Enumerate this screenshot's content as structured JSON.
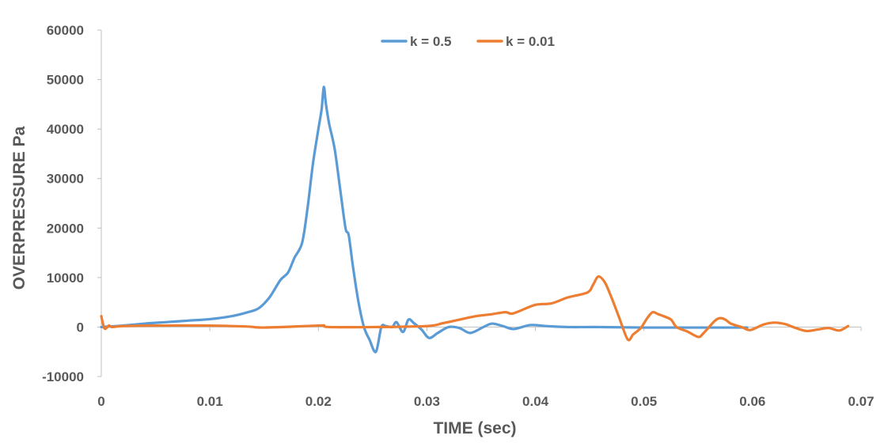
{
  "chart_data": {
    "type": "line",
    "title": "",
    "xlabel": "TIME (sec)",
    "ylabel": "OVERPRESSURE Pa",
    "xlim": [
      0,
      0.07
    ],
    "ylim": [
      -10000,
      60000
    ],
    "x_ticks": [
      "0",
      "0.01",
      "0.02",
      "0.03",
      "0.04",
      "0.05",
      "0.06",
      "0.07"
    ],
    "y_ticks": [
      "-10000",
      "0",
      "10000",
      "20000",
      "30000",
      "40000",
      "50000",
      "60000"
    ],
    "grid": false,
    "legend_position": "top-center",
    "colors": {
      "axis": "#bfbfbf",
      "text": "#595959"
    },
    "series": [
      {
        "name": "k = 0.5",
        "color": "#5b9bd5",
        "points": [
          [
            0,
            0
          ],
          [
            0.002,
            300
          ],
          [
            0.004,
            700
          ],
          [
            0.006,
            1000
          ],
          [
            0.008,
            1300
          ],
          [
            0.01,
            1600
          ],
          [
            0.012,
            2200
          ],
          [
            0.0135,
            3000
          ],
          [
            0.0145,
            3800
          ],
          [
            0.0155,
            6000
          ],
          [
            0.0165,
            9500
          ],
          [
            0.0172,
            11000
          ],
          [
            0.0178,
            14000
          ],
          [
            0.0185,
            17000
          ],
          [
            0.019,
            24000
          ],
          [
            0.0195,
            33000
          ],
          [
            0.02,
            40000
          ],
          [
            0.0203,
            44000
          ],
          [
            0.0205,
            48500
          ],
          [
            0.0207,
            45000
          ],
          [
            0.021,
            41000
          ],
          [
            0.0215,
            36000
          ],
          [
            0.022,
            28000
          ],
          [
            0.0225,
            20000
          ],
          [
            0.0228,
            18500
          ],
          [
            0.0232,
            12000
          ],
          [
            0.0237,
            5000
          ],
          [
            0.0242,
            0
          ],
          [
            0.0247,
            -2500
          ],
          [
            0.0253,
            -5000
          ],
          [
            0.0258,
            0
          ],
          [
            0.0262,
            200
          ],
          [
            0.0268,
            0
          ],
          [
            0.0272,
            1000
          ],
          [
            0.0278,
            -1000
          ],
          [
            0.0283,
            1500
          ],
          [
            0.0288,
            800
          ],
          [
            0.0295,
            -500
          ],
          [
            0.0302,
            -2200
          ],
          [
            0.031,
            -1200
          ],
          [
            0.032,
            0
          ],
          [
            0.033,
            -200
          ],
          [
            0.034,
            -1200
          ],
          [
            0.0352,
            0
          ],
          [
            0.036,
            700
          ],
          [
            0.037,
            200
          ],
          [
            0.038,
            -400
          ],
          [
            0.0395,
            400
          ],
          [
            0.041,
            200
          ],
          [
            0.043,
            0
          ],
          [
            0.046,
            0
          ],
          [
            0.05,
            -100
          ],
          [
            0.055,
            -100
          ],
          [
            0.0595,
            -100
          ]
        ]
      },
      {
        "name": "k = 0.01",
        "color": "#ed7d31",
        "points": [
          [
            0,
            2200
          ],
          [
            0.0003,
            -300
          ],
          [
            0.0007,
            300
          ],
          [
            0.001,
            0
          ],
          [
            0.002,
            200
          ],
          [
            0.005,
            300
          ],
          [
            0.01,
            300
          ],
          [
            0.0135,
            100
          ],
          [
            0.015,
            -100
          ],
          [
            0.02,
            300
          ],
          [
            0.0205,
            300
          ],
          [
            0.021,
            0
          ],
          [
            0.025,
            0
          ],
          [
            0.03,
            200
          ],
          [
            0.0315,
            800
          ],
          [
            0.033,
            1500
          ],
          [
            0.0345,
            2200
          ],
          [
            0.036,
            2600
          ],
          [
            0.0372,
            3000
          ],
          [
            0.0378,
            2700
          ],
          [
            0.0385,
            3200
          ],
          [
            0.04,
            4500
          ],
          [
            0.0415,
            4800
          ],
          [
            0.043,
            6000
          ],
          [
            0.0448,
            7000
          ],
          [
            0.0453,
            8500
          ],
          [
            0.0458,
            10200
          ],
          [
            0.0464,
            9000
          ],
          [
            0.047,
            6000
          ],
          [
            0.0477,
            2000
          ],
          [
            0.0485,
            -2500
          ],
          [
            0.049,
            -1500
          ],
          [
            0.0497,
            -200
          ],
          [
            0.0503,
            1800
          ],
          [
            0.0508,
            3000
          ],
          [
            0.0513,
            2600
          ],
          [
            0.0518,
            2200
          ],
          [
            0.0525,
            1500
          ],
          [
            0.053,
            0
          ],
          [
            0.054,
            -900
          ],
          [
            0.055,
            -2000
          ],
          [
            0.0555,
            -1200
          ],
          [
            0.0565,
            1200
          ],
          [
            0.057,
            1800
          ],
          [
            0.0575,
            1500
          ],
          [
            0.058,
            700
          ],
          [
            0.059,
            0
          ],
          [
            0.0598,
            -600
          ],
          [
            0.061,
            500
          ],
          [
            0.062,
            900
          ],
          [
            0.063,
            600
          ],
          [
            0.064,
            -200
          ],
          [
            0.065,
            -800
          ],
          [
            0.066,
            -500
          ],
          [
            0.067,
            -200
          ],
          [
            0.068,
            -700
          ],
          [
            0.0688,
            200
          ]
        ]
      }
    ]
  }
}
